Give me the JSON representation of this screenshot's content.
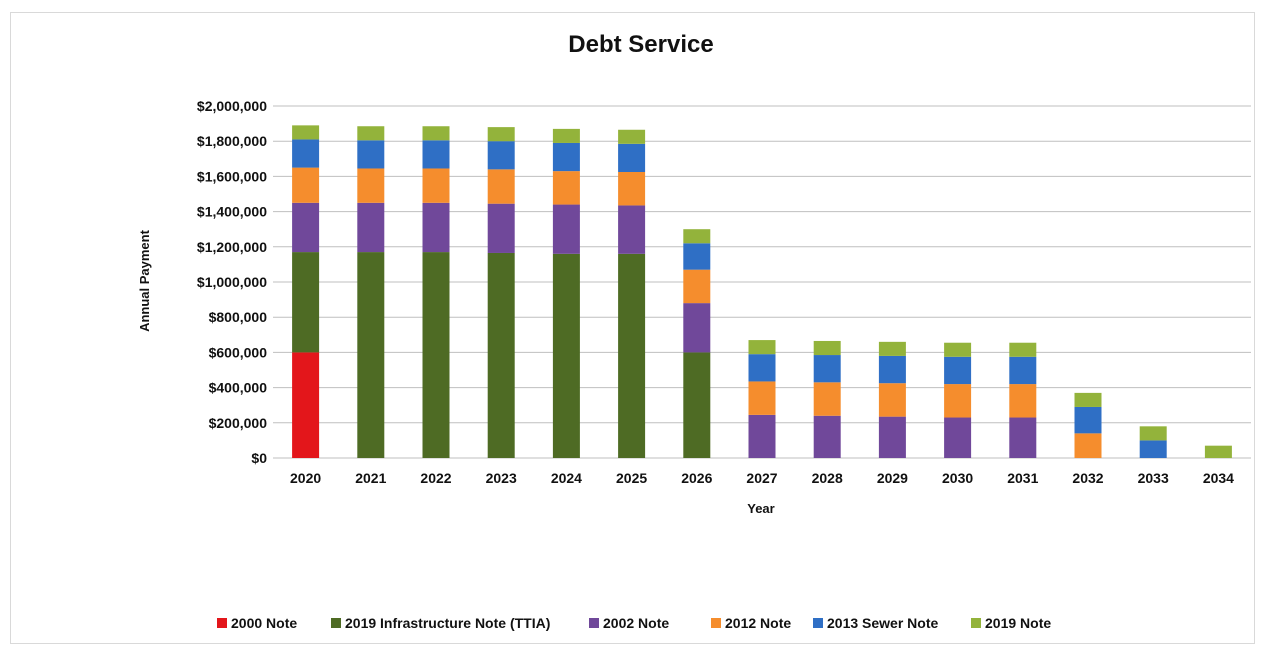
{
  "chart_data": {
    "type": "bar",
    "stacked": true,
    "title": "Debt Service",
    "xlabel": "Year",
    "ylabel": "Annual Payment",
    "ylim": [
      0,
      2000000
    ],
    "yticks": [
      0,
      200000,
      400000,
      600000,
      800000,
      1000000,
      1200000,
      1400000,
      1600000,
      1800000,
      2000000
    ],
    "ytick_labels": [
      "$0",
      "$200,000",
      "$400,000",
      "$600,000",
      "$800,000",
      "$1,000,000",
      "$1,200,000",
      "$1,400,000",
      "$1,600,000",
      "$1,800,000",
      "$2,000,000"
    ],
    "grid": true,
    "legend_position": "bottom",
    "categories": [
      "2020",
      "2021",
      "2022",
      "2023",
      "2024",
      "2025",
      "2026",
      "2027",
      "2028",
      "2029",
      "2030",
      "2031",
      "2032",
      "2033",
      "2034"
    ],
    "series": [
      {
        "name": "2000 Note",
        "color": "#e3161b",
        "values": [
          600000,
          0,
          0,
          0,
          0,
          0,
          0,
          0,
          0,
          0,
          0,
          0,
          0,
          0,
          0
        ]
      },
      {
        "name": "2019 Infrastructure Note (TTIA)",
        "color": "#4e6b24",
        "values": [
          570000,
          1170000,
          1170000,
          1165000,
          1160000,
          1160000,
          600000,
          0,
          0,
          0,
          0,
          0,
          0,
          0,
          0
        ]
      },
      {
        "name": "2002 Note",
        "color": "#70489a",
        "values": [
          280000,
          280000,
          280000,
          280000,
          280000,
          275000,
          280000,
          245000,
          240000,
          235000,
          230000,
          230000,
          0,
          0,
          0
        ]
      },
      {
        "name": "2012 Note",
        "color": "#f58d2d",
        "values": [
          200000,
          195000,
          195000,
          195000,
          190000,
          190000,
          190000,
          190000,
          190000,
          190000,
          190000,
          190000,
          140000,
          0,
          0
        ]
      },
      {
        "name": "2013 Sewer Note",
        "color": "#2f6fc5",
        "values": [
          160000,
          160000,
          160000,
          160000,
          160000,
          160000,
          150000,
          155000,
          155000,
          155000,
          155000,
          155000,
          150000,
          100000,
          0
        ]
      },
      {
        "name": "2019 Note",
        "color": "#93b33b",
        "values": [
          80000,
          80000,
          80000,
          80000,
          80000,
          80000,
          80000,
          80000,
          80000,
          80000,
          80000,
          80000,
          80000,
          80000,
          70000
        ]
      }
    ]
  }
}
